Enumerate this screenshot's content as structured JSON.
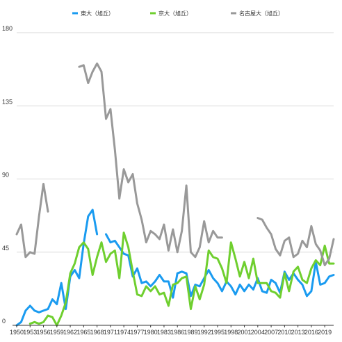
{
  "chart_data": {
    "type": "line",
    "title": "",
    "xlabel": "",
    "ylabel": "",
    "xlim": [
      1950,
      2021
    ],
    "ylim": [
      0,
      180
    ],
    "y_ticks": [
      0,
      45,
      90,
      135,
      180
    ],
    "x_ticks": [
      1950,
      1953,
      1956,
      1959,
      1962,
      1965,
      1968,
      1971,
      1974,
      1977,
      1980,
      1983,
      1986,
      1989,
      1992,
      1995,
      1998,
      2001,
      2004,
      2007,
      2010,
      2013,
      2016,
      2019
    ],
    "grid": "horizontal",
    "legend_position": "top",
    "series": [
      {
        "name": "東大（旭丘）",
        "color": "#1a9bf0",
        "points": [
          [
            1950,
            0
          ],
          [
            1951,
            2
          ],
          [
            1952,
            9
          ],
          [
            1953,
            12
          ],
          [
            1954,
            9
          ],
          [
            1955,
            8
          ],
          [
            1956,
            9
          ],
          [
            1957,
            10
          ],
          [
            1958,
            16
          ],
          [
            1959,
            13
          ],
          [
            1960,
            26
          ],
          [
            1961,
            10
          ],
          [
            1962,
            30
          ],
          [
            1963,
            34
          ],
          [
            1964,
            29
          ],
          [
            1965,
            50
          ],
          [
            1966,
            67
          ],
          [
            1967,
            71
          ],
          [
            1968,
            56
          ],
          [
            1969,
            null
          ],
          [
            1970,
            56
          ],
          [
            1971,
            51
          ],
          [
            1972,
            52
          ],
          [
            1973,
            48
          ],
          [
            1974,
            44
          ],
          [
            1975,
            43
          ],
          [
            1976,
            30
          ],
          [
            1977,
            35
          ],
          [
            1978,
            26
          ],
          [
            1979,
            27
          ],
          [
            1980,
            24
          ],
          [
            1981,
            27
          ],
          [
            1982,
            31
          ],
          [
            1983,
            27
          ],
          [
            1984,
            27
          ],
          [
            1985,
            17
          ],
          [
            1986,
            32
          ],
          [
            1987,
            33
          ],
          [
            1988,
            32
          ],
          [
            1989,
            18
          ],
          [
            1990,
            25
          ],
          [
            1991,
            24
          ],
          [
            1992,
            29
          ],
          [
            1993,
            34
          ],
          [
            1994,
            29
          ],
          [
            1995,
            26
          ],
          [
            1996,
            21
          ],
          [
            1997,
            27
          ],
          [
            1998,
            24
          ],
          [
            1999,
            19
          ],
          [
            2000,
            25
          ],
          [
            2001,
            21
          ],
          [
            2002,
            25
          ],
          [
            2003,
            22
          ],
          [
            2004,
            29
          ],
          [
            2005,
            21
          ],
          [
            2006,
            20
          ],
          [
            2007,
            28
          ],
          [
            2008,
            26
          ],
          [
            2009,
            20
          ],
          [
            2010,
            33
          ],
          [
            2011,
            28
          ],
          [
            2012,
            32
          ],
          [
            2013,
            28
          ],
          [
            2014,
            25
          ],
          [
            2015,
            18
          ],
          [
            2016,
            21
          ],
          [
            2017,
            39
          ],
          [
            2018,
            25
          ],
          [
            2019,
            26
          ],
          [
            2020,
            30
          ],
          [
            2021,
            31
          ]
        ]
      },
      {
        "name": "京大（旭丘）",
        "color": "#6fcf2f",
        "points": [
          [
            1953,
            1
          ],
          [
            1954,
            2
          ],
          [
            1955,
            1
          ],
          [
            1956,
            2
          ],
          [
            1957,
            6
          ],
          [
            1958,
            5
          ],
          [
            1959,
            0
          ],
          [
            1960,
            6
          ],
          [
            1961,
            14
          ],
          [
            1962,
            32
          ],
          [
            1963,
            38
          ],
          [
            1964,
            48
          ],
          [
            1965,
            51
          ],
          [
            1966,
            47
          ],
          [
            1967,
            31
          ],
          [
            1968,
            42
          ],
          [
            1969,
            51
          ],
          [
            1970,
            39
          ],
          [
            1971,
            44
          ],
          [
            1972,
            46
          ],
          [
            1973,
            29
          ],
          [
            1974,
            57
          ],
          [
            1975,
            48
          ],
          [
            1976,
            33
          ],
          [
            1977,
            19
          ],
          [
            1978,
            18
          ],
          [
            1979,
            24
          ],
          [
            1980,
            21
          ],
          [
            1981,
            24
          ],
          [
            1982,
            19
          ],
          [
            1983,
            20
          ],
          [
            1984,
            12
          ],
          [
            1985,
            25
          ],
          [
            1986,
            26
          ],
          [
            1987,
            29
          ],
          [
            1988,
            30
          ],
          [
            1989,
            10
          ],
          [
            1990,
            24
          ],
          [
            1991,
            16
          ],
          [
            1992,
            25
          ],
          [
            1993,
            46
          ],
          [
            1994,
            42
          ],
          [
            1995,
            41
          ],
          [
            1996,
            35
          ],
          [
            1997,
            26
          ],
          [
            1998,
            51
          ],
          [
            1999,
            41
          ],
          [
            2000,
            30
          ],
          [
            2001,
            39
          ],
          [
            2002,
            29
          ],
          [
            2003,
            41
          ],
          [
            2004,
            26
          ],
          [
            2005,
            26
          ],
          [
            2006,
            26
          ],
          [
            2007,
            21
          ],
          [
            2008,
            20
          ],
          [
            2009,
            17
          ],
          [
            2010,
            32
          ],
          [
            2011,
            21
          ],
          [
            2012,
            33
          ],
          [
            2013,
            36
          ],
          [
            2014,
            28
          ],
          [
            2015,
            26
          ],
          [
            2016,
            35
          ],
          [
            2017,
            40
          ],
          [
            2018,
            37
          ],
          [
            2019,
            49
          ],
          [
            2020,
            38
          ],
          [
            2021,
            38
          ]
        ]
      },
      {
        "name": "名古屋大（旭丘）",
        "color": "#999999",
        "points": [
          [
            1950,
            56
          ],
          [
            1951,
            62
          ],
          [
            1952,
            42
          ],
          [
            1953,
            45
          ],
          [
            1954,
            44
          ],
          [
            1955,
            67
          ],
          [
            1956,
            87
          ],
          [
            1957,
            70
          ],
          [
            1958,
            null
          ],
          [
            1964,
            159
          ],
          [
            1965,
            160
          ],
          [
            1966,
            149
          ],
          [
            1967,
            156
          ],
          [
            1968,
            161
          ],
          [
            1969,
            156
          ],
          [
            1970,
            127
          ],
          [
            1971,
            133
          ],
          [
            1972,
            108
          ],
          [
            1973,
            78
          ],
          [
            1974,
            96
          ],
          [
            1975,
            88
          ],
          [
            1976,
            93
          ],
          [
            1977,
            75
          ],
          [
            1978,
            65
          ],
          [
            1979,
            51
          ],
          [
            1980,
            58
          ],
          [
            1981,
            56
          ],
          [
            1982,
            53
          ],
          [
            1983,
            62
          ],
          [
            1984,
            46
          ],
          [
            1985,
            59
          ],
          [
            1986,
            45
          ],
          [
            1987,
            58
          ],
          [
            1988,
            86
          ],
          [
            1989,
            45
          ],
          [
            1990,
            42
          ],
          [
            1991,
            48
          ],
          [
            1992,
            64
          ],
          [
            1993,
            51
          ],
          [
            1994,
            58
          ],
          [
            1995,
            54
          ],
          [
            1996,
            54
          ],
          [
            1997,
            null
          ],
          [
            2004,
            66
          ],
          [
            2005,
            65
          ],
          [
            2006,
            60
          ],
          [
            2007,
            56
          ],
          [
            2008,
            47
          ],
          [
            2009,
            43
          ],
          [
            2010,
            52
          ],
          [
            2011,
            54
          ],
          [
            2012,
            42
          ],
          [
            2013,
            44
          ],
          [
            2014,
            52
          ],
          [
            2015,
            48
          ],
          [
            2016,
            61
          ],
          [
            2017,
            50
          ],
          [
            2018,
            46
          ],
          [
            2019,
            37
          ],
          [
            2020,
            41
          ],
          [
            2021,
            53
          ]
        ]
      }
    ]
  }
}
